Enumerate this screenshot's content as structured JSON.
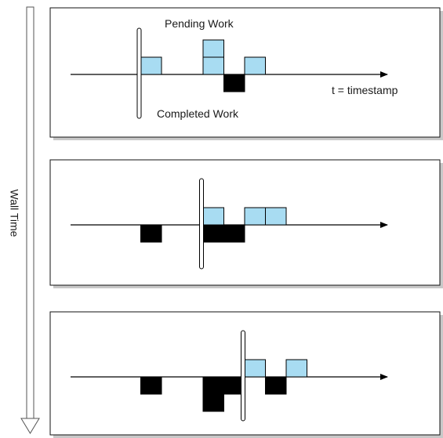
{
  "wall_time_axis": {
    "label": "Wall Time"
  },
  "axis_label": "t = timestamp",
  "panel_labels": {
    "pending": "Pending Work",
    "completed": "Completed Work"
  },
  "colors": {
    "pending_block": "#a8dcf2",
    "completed_block": "#000000",
    "panel_border": "#111111",
    "panel_shadow": "#c8c8c8",
    "wall_arrow_fill": "#ffffff",
    "axis_line": "#000000"
  },
  "stages": [
    {
      "stage": 1,
      "watermark_slot": 0,
      "pending": [
        {
          "slot": 1,
          "level": 1
        },
        {
          "slot": 4,
          "level": 1
        },
        {
          "slot": 4,
          "level": 2
        },
        {
          "slot": 6,
          "level": 1
        }
      ],
      "completed": [
        {
          "slot": 5,
          "level": 1
        }
      ]
    },
    {
      "stage": 2,
      "watermark_slot": 3,
      "pending": [
        {
          "slot": 4,
          "level": 1
        },
        {
          "slot": 6,
          "level": 1
        },
        {
          "slot": 7,
          "level": 1
        }
      ],
      "completed": [
        {
          "slot": 1,
          "level": 1
        },
        {
          "slot": 4,
          "level": 1
        },
        {
          "slot": 5,
          "level": 1
        }
      ]
    },
    {
      "stage": 3,
      "watermark_slot": 5,
      "pending": [
        {
          "slot": 6,
          "level": 1
        },
        {
          "slot": 8,
          "level": 1
        }
      ],
      "completed": [
        {
          "slot": 1,
          "level": 1
        },
        {
          "slot": 4,
          "level": 1
        },
        {
          "slot": 4,
          "level": 2
        },
        {
          "slot": 5,
          "level": 1
        },
        {
          "slot": 7,
          "level": 1
        }
      ]
    }
  ]
}
